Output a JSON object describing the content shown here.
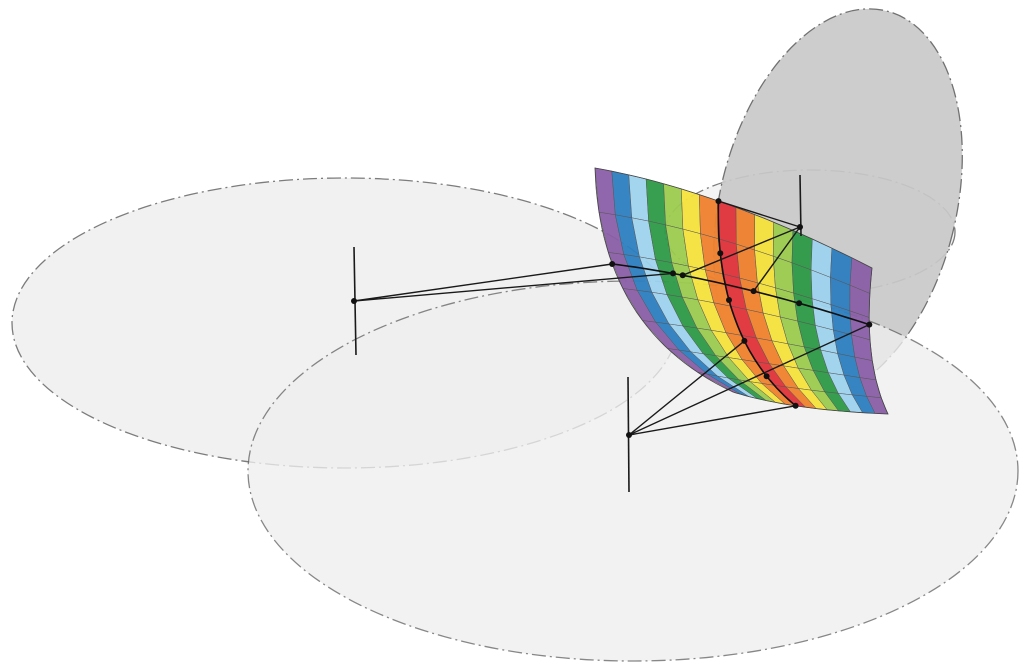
{
  "figure": {
    "description_free": true,
    "colors": {
      "background": "#ffffff",
      "disk_fill": "#efefef",
      "vertical_disk_fill": "#c8c8c8",
      "disk_stroke": "#666666",
      "line": "#1a1a1a",
      "point": "#111111",
      "surface_bands": [
        "#8b5fa8",
        "#2e7fc1",
        "#9fd3ef",
        "#2e9a47",
        "#9ccc4f",
        "#f6e23c",
        "#f0822e",
        "#e2333b",
        "#f0822e",
        "#f6e23c",
        "#9ccc4f",
        "#2e9a47",
        "#9fd3ef",
        "#2e7fc1",
        "#8b5fa8"
      ]
    },
    "elements": {
      "disks": 4,
      "masts": 3,
      "surface": "colored-saddle-surface"
    }
  }
}
